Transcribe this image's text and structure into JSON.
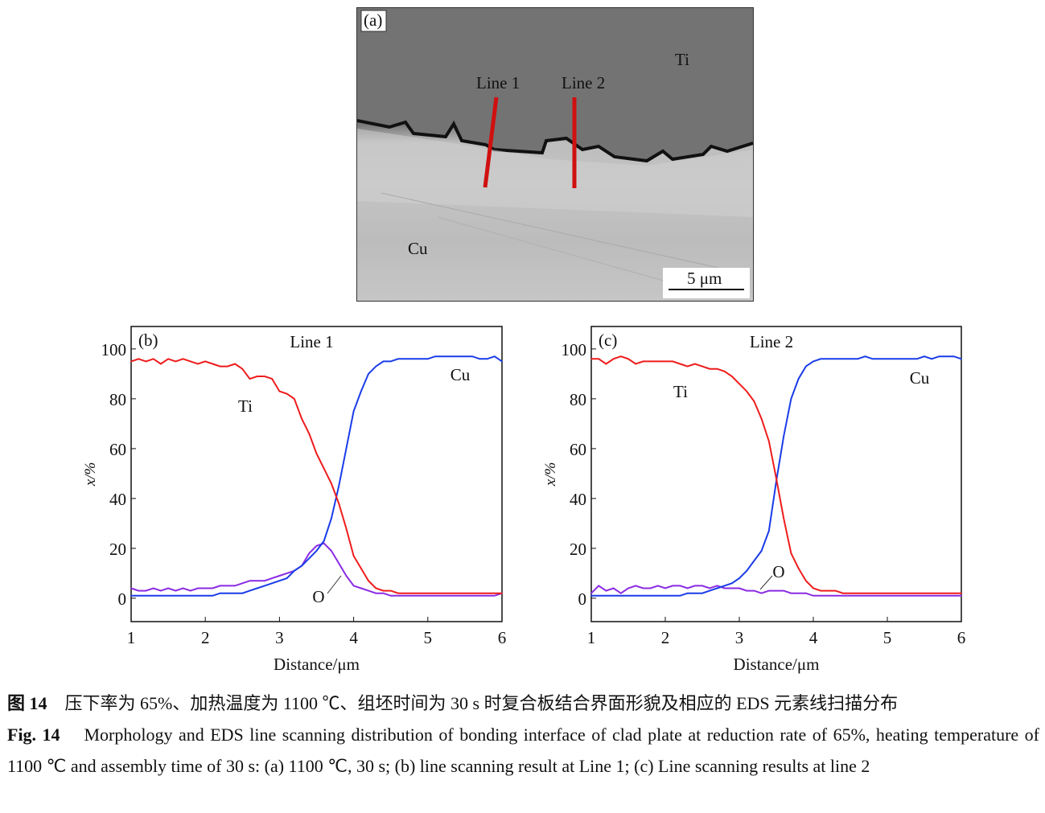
{
  "panel_a": {
    "label": "(a)",
    "region_labels": {
      "ti": "Ti",
      "cu": "Cu"
    },
    "line_labels": [
      "Line 1",
      "Line 2"
    ],
    "scale_bar": "5 μm",
    "colors": {
      "scan_line": "#d01010"
    }
  },
  "chart_data": [
    {
      "type": "line",
      "panel_label": "(b)",
      "title": "Line 1",
      "xlabel": "Distance/μm",
      "ylabel": "x/%",
      "xlim": [
        1,
        6
      ],
      "ylim": [
        -9.4,
        109
      ],
      "xticks": [
        "1",
        "2",
        "3",
        "4",
        "5",
        "6"
      ],
      "yticks": [
        "0",
        "20",
        "40",
        "60",
        "80",
        "100"
      ],
      "grid": false,
      "x": [
        1.0,
        1.1,
        1.2,
        1.3,
        1.4,
        1.5,
        1.6,
        1.7,
        1.8,
        1.9,
        2.0,
        2.1,
        2.2,
        2.3,
        2.4,
        2.5,
        2.6,
        2.7,
        2.8,
        2.9,
        3.0,
        3.1,
        3.2,
        3.3,
        3.4,
        3.5,
        3.6,
        3.7,
        3.8,
        3.9,
        4.0,
        4.1,
        4.2,
        4.3,
        4.4,
        4.5,
        4.6,
        4.7,
        4.8,
        4.9,
        5.0,
        5.1,
        5.2,
        5.3,
        5.4,
        5.5,
        5.6,
        5.7,
        5.8,
        5.9,
        6.0
      ],
      "series": [
        {
          "name": "Ti",
          "color": "#ee1c1c",
          "values": [
            95,
            96,
            95,
            96,
            94,
            96,
            95,
            96,
            95,
            94,
            95,
            94,
            93,
            93,
            94,
            92,
            88,
            89,
            89,
            88,
            83,
            82,
            80,
            72,
            66,
            58,
            52,
            46,
            38,
            28,
            17,
            12,
            7,
            4,
            3,
            3,
            2,
            2,
            2,
            2,
            2,
            2,
            2,
            2,
            2,
            2,
            2,
            2,
            2,
            2,
            2
          ]
        },
        {
          "name": "Cu",
          "color": "#1a3ce8",
          "values": [
            1,
            1,
            1,
            1,
            1,
            1,
            1,
            1,
            1,
            1,
            1,
            1,
            2,
            2,
            2,
            2,
            3,
            4,
            5,
            6,
            7,
            8,
            11,
            13,
            16,
            19,
            23,
            32,
            45,
            60,
            75,
            83,
            90,
            93,
            95,
            95,
            96,
            96,
            96,
            96,
            96,
            97,
            97,
            97,
            97,
            97,
            97,
            96,
            96,
            97,
            95
          ]
        },
        {
          "name": "O",
          "color": "#8a2be2",
          "values": [
            4,
            3,
            3,
            4,
            3,
            4,
            3,
            4,
            3,
            4,
            4,
            4,
            5,
            5,
            5,
            6,
            7,
            7,
            7,
            8,
            9,
            10,
            11,
            13,
            18,
            21,
            22,
            19,
            14,
            9,
            5,
            4,
            3,
            2,
            2,
            1,
            1,
            1,
            1,
            1,
            1,
            1,
            1,
            1,
            1,
            1,
            1,
            1,
            1,
            1,
            2
          ]
        }
      ]
    },
    {
      "type": "line",
      "panel_label": "(c)",
      "title": "Line 2",
      "xlabel": "Distance/μm",
      "ylabel": "x/%",
      "xlim": [
        1,
        6
      ],
      "ylim": [
        -9.4,
        109
      ],
      "xticks": [
        "1",
        "2",
        "3",
        "4",
        "5",
        "6"
      ],
      "yticks": [
        "0",
        "20",
        "40",
        "60",
        "80",
        "100"
      ],
      "grid": false,
      "x": [
        1.0,
        1.1,
        1.2,
        1.3,
        1.4,
        1.5,
        1.6,
        1.7,
        1.8,
        1.9,
        2.0,
        2.1,
        2.2,
        2.3,
        2.4,
        2.5,
        2.6,
        2.7,
        2.8,
        2.9,
        3.0,
        3.1,
        3.2,
        3.3,
        3.4,
        3.5,
        3.6,
        3.7,
        3.8,
        3.9,
        4.0,
        4.1,
        4.2,
        4.3,
        4.4,
        4.5,
        4.6,
        4.7,
        4.8,
        4.9,
        5.0,
        5.1,
        5.2,
        5.3,
        5.4,
        5.5,
        5.6,
        5.7,
        5.8,
        5.9,
        6.0
      ],
      "series": [
        {
          "name": "Ti",
          "color": "#ee1c1c",
          "values": [
            96,
            96,
            94,
            96,
            97,
            96,
            94,
            95,
            95,
            95,
            95,
            95,
            94,
            93,
            94,
            93,
            92,
            92,
            91,
            89,
            86,
            83,
            79,
            72,
            63,
            48,
            32,
            18,
            12,
            7,
            4,
            3,
            3,
            3,
            2,
            2,
            2,
            2,
            2,
            2,
            2,
            2,
            2,
            2,
            2,
            2,
            2,
            2,
            2,
            2,
            2
          ]
        },
        {
          "name": "Cu",
          "color": "#1a3ce8",
          "values": [
            1,
            1,
            1,
            1,
            1,
            1,
            1,
            1,
            1,
            1,
            1,
            1,
            1,
            2,
            2,
            2,
            3,
            4,
            5,
            6,
            8,
            11,
            15,
            19,
            27,
            47,
            65,
            80,
            88,
            93,
            95,
            96,
            96,
            96,
            96,
            96,
            96,
            97,
            96,
            96,
            96,
            96,
            96,
            96,
            96,
            97,
            96,
            97,
            97,
            97,
            96
          ]
        },
        {
          "name": "O",
          "color": "#8a2be2",
          "values": [
            2,
            5,
            3,
            4,
            2,
            4,
            5,
            4,
            4,
            5,
            4,
            5,
            5,
            4,
            5,
            5,
            4,
            5,
            4,
            4,
            4,
            3,
            3,
            2,
            3,
            3,
            3,
            2,
            2,
            2,
            1,
            1,
            1,
            1,
            1,
            1,
            1,
            1,
            1,
            1,
            1,
            1,
            1,
            1,
            1,
            1,
            1,
            1,
            1,
            1,
            1
          ]
        }
      ]
    }
  ],
  "caption": {
    "cn_label": "图 14",
    "cn_text": "压下率为 65%、加热温度为 1100 ℃、组坯时间为 30 s 时复合板结合界面形貌及相应的 EDS 元素线扫描分布",
    "en_label": "Fig. 14",
    "en_text": "Morphology and EDS line scanning distribution of bonding interface of clad plate at reduction rate of 65%, heating temperature of 1100 ℃ and assembly time of 30 s: (a) 1100 ℃, 30 s; (b) line scanning result at Line 1; (c) Line scanning results at line 2"
  }
}
